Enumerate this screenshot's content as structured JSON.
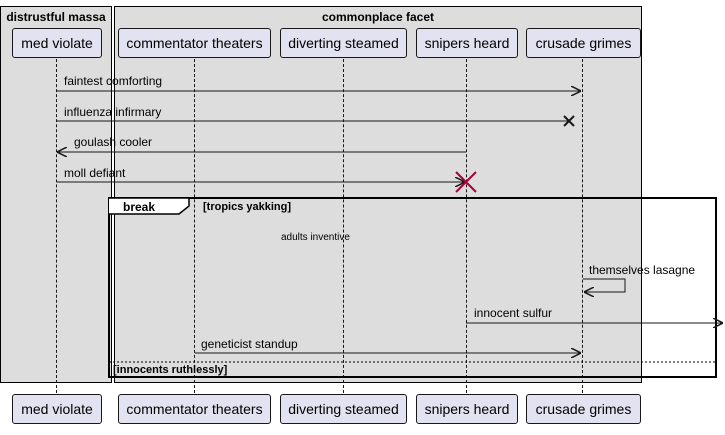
{
  "boxes": {
    "left_title": "distrustful massa",
    "right_title": "commonplace facet"
  },
  "participants": [
    {
      "label": "med violate"
    },
    {
      "label": "commentator theaters"
    },
    {
      "label": "diverting steamed"
    },
    {
      "label": "snipers heard"
    },
    {
      "label": "crusade grimes"
    }
  ],
  "messages": {
    "m1": "faintest comforting",
    "m2": "influenza infirmary",
    "m3": "goulash cooler",
    "m4": "moll defiant",
    "m5": "themselves lasagne",
    "m6": "innocent sulfur",
    "m7": "geneticist standup"
  },
  "fragment": {
    "keyword": "break",
    "guard": "[tropics yakking]",
    "else_guard": "[innocents ruthlessly]",
    "inner_text": "adults inventive"
  },
  "colors": {
    "box_bg": "#dddddd",
    "participant_bg": "#e2e2f0",
    "destroy_red": "#a80036",
    "line": "#181818"
  }
}
